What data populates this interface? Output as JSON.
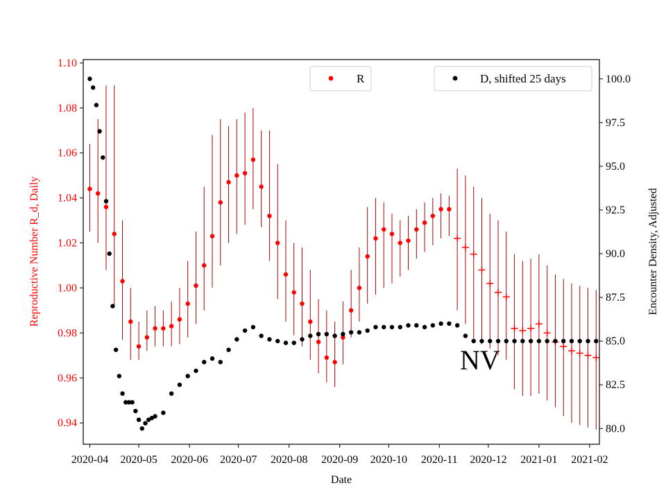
{
  "chart_data": {
    "type": "scatter",
    "xlabel": "Date",
    "ylabel_left": "Reproductive Number R_d, Daily",
    "ylabel_right": "Encounter Density, Adjusted",
    "annotation": "NV",
    "x_ticks": [
      "2020-04",
      "2020-05",
      "2020-06",
      "2020-07",
      "2020-08",
      "2020-09",
      "2020-10",
      "2020-11",
      "2020-12",
      "2021-01",
      "2021-02"
    ],
    "x_range_days": [
      -4,
      312
    ],
    "y_left_ticks": [
      "0.94",
      "0.96",
      "0.98",
      "1.00",
      "1.02",
      "1.04",
      "1.06",
      "1.08",
      "1.10"
    ],
    "y_left_range": [
      0.9305,
      1.1015
    ],
    "y_right_ticks": [
      "80.0",
      "82.5",
      "85.0",
      "87.5",
      "90.0",
      "92.5",
      "95.0",
      "97.5",
      "100.0"
    ],
    "y_right_range": [
      79.1,
      101.1
    ],
    "legend_left": {
      "label": "R",
      "color": "#ff0000",
      "position": "top-center"
    },
    "legend_right": {
      "label": "D, shifted 25 days",
      "color": "#000000",
      "position": "top-right"
    },
    "r_color": "#ff0000",
    "errorbar_color": "#b00000",
    "d_color": "#000000",
    "r_series": {
      "name": "R",
      "x": [
        0,
        5,
        10,
        15,
        20,
        25,
        30,
        35,
        40,
        45,
        50,
        55,
        60,
        65,
        70,
        75,
        80,
        85,
        90,
        95,
        100,
        105,
        110,
        115,
        120,
        125,
        130,
        135,
        140,
        145,
        150,
        155,
        160,
        165,
        170,
        175,
        180,
        185,
        190,
        195,
        200,
        205,
        210,
        215,
        220,
        225,
        230,
        235,
        240,
        245,
        250,
        255,
        260,
        265,
        270,
        275,
        280,
        285,
        290,
        295,
        300,
        305,
        310
      ],
      "y": [
        1.044,
        1.042,
        1.036,
        1.024,
        1.003,
        0.985,
        0.974,
        0.978,
        0.982,
        0.982,
        0.983,
        0.986,
        0.993,
        1.001,
        1.01,
        1.023,
        1.038,
        1.047,
        1.05,
        1.051,
        1.057,
        1.045,
        1.032,
        1.02,
        1.006,
        0.998,
        0.993,
        0.985,
        0.976,
        0.969,
        0.967,
        0.978,
        0.99,
        1.0,
        1.014,
        1.022,
        1.026,
        1.024,
        1.02,
        1.021,
        1.026,
        1.029,
        1.032,
        1.035,
        1.035,
        1.022,
        1.018,
        1.015,
        1.008,
        1.002,
        0.998,
        0.996,
        0.982,
        0.981,
        0.982,
        0.984,
        0.98,
        0.976,
        0.974,
        0.972,
        0.971,
        0.97,
        0.969
      ],
      "lower": [
        1.025,
        1.02,
        1.008,
        0.992,
        0.977,
        0.968,
        0.968,
        0.972,
        0.974,
        0.974,
        0.974,
        0.975,
        0.978,
        0.984,
        0.99,
        1.0,
        1.01,
        1.02,
        1.024,
        1.028,
        1.035,
        1.027,
        1.012,
        0.995,
        0.985,
        0.979,
        0.974,
        0.968,
        0.962,
        0.958,
        0.956,
        0.966,
        0.978,
        0.985,
        0.993,
        0.997,
        1.0,
        1.002,
        1.005,
        1.008,
        1.013,
        1.016,
        1.019,
        1.022,
        1.023,
        0.99,
        0.984,
        0.977,
        0.975,
        0.973,
        0.97,
        0.968,
        0.955,
        0.952,
        0.952,
        0.953,
        0.95,
        0.947,
        0.943,
        0.94,
        0.939,
        0.938,
        0.937
      ],
      "upper": [
        1.064,
        1.075,
        1.09,
        1.09,
        1.03,
        1.0,
        0.985,
        0.99,
        0.992,
        0.99,
        0.994,
        1.0,
        1.012,
        1.025,
        1.045,
        1.068,
        1.075,
        1.072,
        1.075,
        1.078,
        1.08,
        1.07,
        1.07,
        1.055,
        1.03,
        1.02,
        1.018,
        1.008,
        0.995,
        0.99,
        0.985,
        0.994,
        1.008,
        1.018,
        1.036,
        1.04,
        1.038,
        1.033,
        1.03,
        1.032,
        1.035,
        1.038,
        1.04,
        1.042,
        1.041,
        1.053,
        1.05,
        1.045,
        1.04,
        1.033,
        1.03,
        1.025,
        1.015,
        1.012,
        1.013,
        1.015,
        1.01,
        1.006,
        1.004,
        1.002,
        1.001,
        1.0,
        0.999
      ]
    },
    "d_series": {
      "name": "D, shifted 25 days",
      "x": [
        0,
        2,
        4,
        6,
        8,
        10,
        12,
        14,
        16,
        18,
        20,
        22,
        24,
        26,
        28,
        30,
        32,
        34,
        36,
        38,
        40,
        45,
        50,
        55,
        60,
        65,
        70,
        75,
        80,
        85,
        90,
        95,
        100,
        105,
        110,
        115,
        120,
        125,
        130,
        135,
        140,
        145,
        150,
        155,
        160,
        165,
        170,
        175,
        180,
        185,
        190,
        195,
        200,
        205,
        210,
        215,
        220,
        225,
        230,
        235,
        240,
        245,
        250,
        255,
        260,
        265,
        270,
        275,
        280,
        285,
        290,
        295,
        300,
        305,
        310
      ],
      "y": [
        100.0,
        99.5,
        98.5,
        97.0,
        95.5,
        93.0,
        90.0,
        87.0,
        84.5,
        83.0,
        82.0,
        81.5,
        81.5,
        81.5,
        81.0,
        80.5,
        80.0,
        80.3,
        80.5,
        80.6,
        80.7,
        80.9,
        82.0,
        82.5,
        83.0,
        83.3,
        83.8,
        84.0,
        83.8,
        84.5,
        85.1,
        85.6,
        85.8,
        85.3,
        85.1,
        85.0,
        84.9,
        84.9,
        85.1,
        85.3,
        85.4,
        85.4,
        85.3,
        85.4,
        85.5,
        85.5,
        85.6,
        85.8,
        85.8,
        85.8,
        85.8,
        85.9,
        85.9,
        85.8,
        85.9,
        86.0,
        86.0,
        85.9,
        85.3,
        85.0,
        85.0,
        85.0,
        85.0,
        85.0,
        85.0,
        85.0,
        85.0,
        85.0,
        85.0,
        85.0,
        85.0,
        85.0,
        85.0,
        85.0,
        85.0
      ]
    }
  }
}
